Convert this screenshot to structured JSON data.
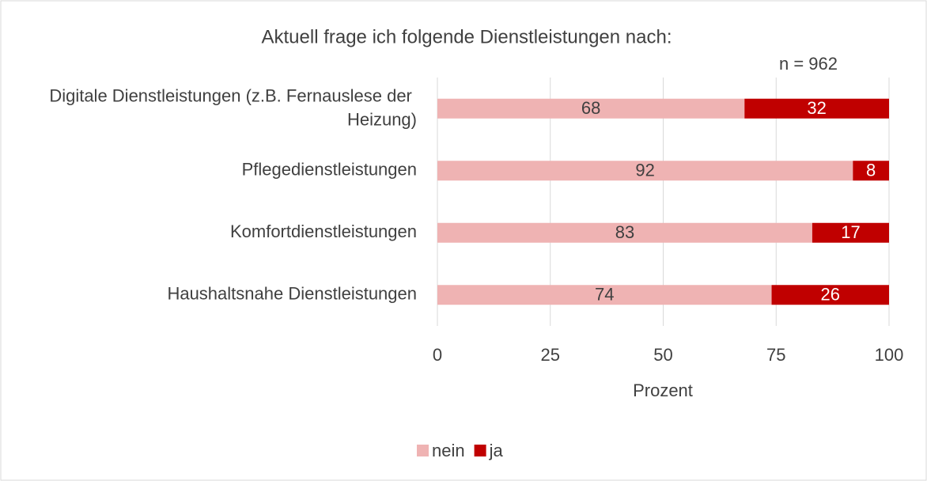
{
  "chart_data": {
    "type": "stacked_barh",
    "title": "Aktuell frage ich folgende Dienstleistungen nach:",
    "annotation": "n = 962",
    "xlabel": "Prozent",
    "categories": [
      "Digitale Dienstleistungen (z.B. Fernauslese der Heizung)",
      "Pflegedienstleistungen",
      "Komfortdienstleistungen",
      "Haushaltsnahe Dienstleistungen"
    ],
    "series": [
      {
        "name": "nein",
        "color": "#efb3b3",
        "label_color": "#404040",
        "values": [
          68,
          92,
          83,
          74
        ]
      },
      {
        "name": "ja",
        "color": "#c00000",
        "label_color": "#ffffff",
        "values": [
          32,
          8,
          17,
          26
        ]
      }
    ],
    "xlim": [
      0,
      100
    ],
    "xticks": [
      0,
      25,
      50,
      75,
      100
    ],
    "grid": true,
    "legend": "bottom"
  }
}
